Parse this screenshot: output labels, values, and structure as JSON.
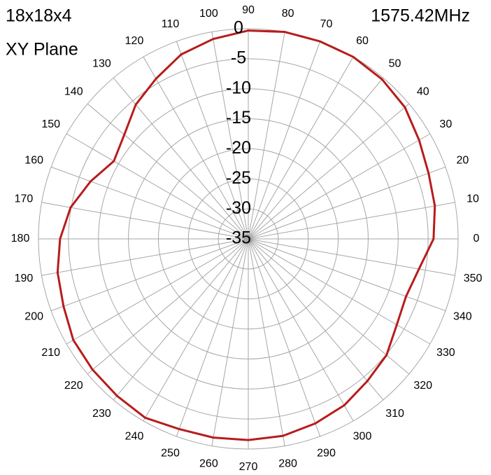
{
  "chart_data": {
    "type": "polar",
    "title": "18x18x4",
    "subtitle": "XY Plane",
    "annotation": "1575.42MHz",
    "theta": [
      0,
      10,
      20,
      30,
      40,
      50,
      60,
      70,
      80,
      90,
      100,
      110,
      120,
      130,
      140,
      150,
      160,
      170,
      180,
      190,
      200,
      210,
      220,
      230,
      240,
      250,
      260,
      270,
      280,
      290,
      300,
      310,
      320,
      330,
      340,
      350
    ],
    "angle_ticks": [
      0,
      10,
      20,
      30,
      40,
      50,
      60,
      70,
      80,
      90,
      100,
      110,
      120,
      130,
      140,
      150,
      160,
      170,
      180,
      190,
      200,
      210,
      220,
      230,
      240,
      250,
      260,
      270,
      280,
      290,
      300,
      310,
      320,
      330,
      340,
      350
    ],
    "series": [
      {
        "color": "#b71c1c",
        "values": [
          -4.1,
          -3.4,
          -3.0,
          -2.1,
          -0.9,
          -0.3,
          0,
          0,
          0,
          -0.3,
          -1.2,
          -2.3,
          -4.2,
          -5.8,
          -8.0,
          -9.1,
          -7.0,
          -4.9,
          -3.6,
          -2.7,
          -2.2,
          -1.3,
          -1.1,
          -0.9,
          -0.6,
          -1.3,
          -1.4,
          -1.5,
          -1.7,
          -2.3,
          -3.0,
          -4.1,
          -4.9,
          -6.4,
          -7.0,
          -6.1
        ]
      }
    ],
    "rlim": [
      -35,
      0
    ],
    "rticks": [
      -35,
      -30,
      -25,
      -20,
      -15,
      -10,
      -5,
      0
    ],
    "grid": true
  }
}
